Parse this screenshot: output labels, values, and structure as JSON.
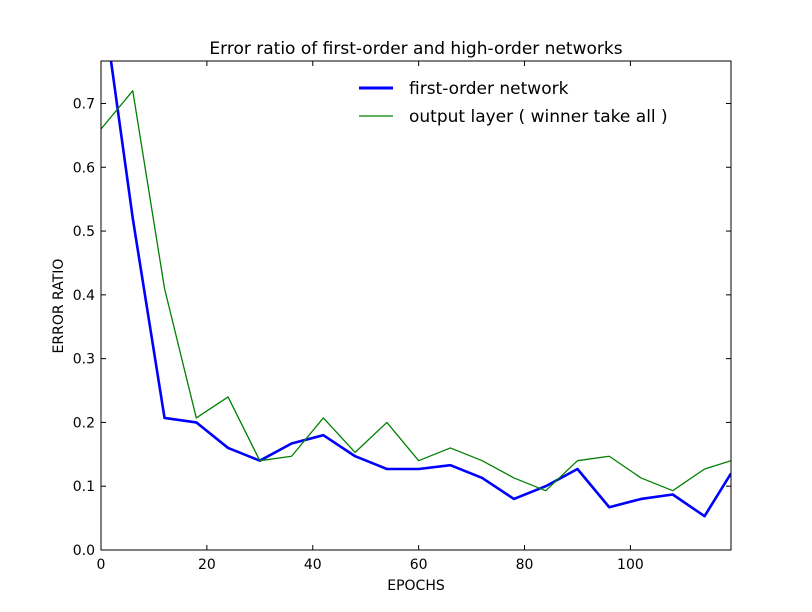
{
  "chart_data": {
    "type": "line",
    "title": "Error ratio of first-order and high-order networks",
    "xlabel": "EPOCHS",
    "ylabel": "ERROR RATIO",
    "xlim": [
      0,
      119
    ],
    "ylim": [
      0.0,
      0.7666
    ],
    "grid": false,
    "legend_position": "top-right",
    "x_ticks": [
      {
        "value": 0,
        "label": "0"
      },
      {
        "value": 20,
        "label": "20"
      },
      {
        "value": 40,
        "label": "40"
      },
      {
        "value": 60,
        "label": "60"
      },
      {
        "value": 80,
        "label": "80"
      },
      {
        "value": 100,
        "label": "100"
      }
    ],
    "y_ticks": [
      {
        "value": 0.0,
        "label": "0.0"
      },
      {
        "value": 0.1,
        "label": "0.1"
      },
      {
        "value": 0.2,
        "label": "0.2"
      },
      {
        "value": 0.3,
        "label": "0.3"
      },
      {
        "value": 0.4,
        "label": "0.4"
      },
      {
        "value": 0.5,
        "label": "0.5"
      },
      {
        "value": 0.6,
        "label": "0.6"
      },
      {
        "value": 0.7,
        "label": "0.7"
      }
    ],
    "series": [
      {
        "name": "first-order network",
        "color": "#0000ff",
        "style": "thick",
        "x": [
          0,
          6,
          12,
          18,
          24,
          30,
          36,
          42,
          48,
          54,
          60,
          66,
          72,
          78,
          84,
          90,
          96,
          102,
          108,
          114,
          119
        ],
        "y": [
          0.88,
          0.52,
          0.207,
          0.2,
          0.16,
          0.14,
          0.167,
          0.18,
          0.147,
          0.127,
          0.127,
          0.133,
          0.113,
          0.08,
          0.1,
          0.127,
          0.067,
          0.08,
          0.087,
          0.053,
          0.12
        ]
      },
      {
        "name": "output layer ( winner take all )",
        "color": "#008000",
        "style": "thin",
        "x": [
          0,
          6,
          12,
          18,
          24,
          30,
          36,
          42,
          48,
          54,
          60,
          66,
          72,
          78,
          84,
          90,
          96,
          102,
          108,
          114,
          119
        ],
        "y": [
          0.66,
          0.72,
          0.41,
          0.207,
          0.24,
          0.14,
          0.147,
          0.207,
          0.153,
          0.2,
          0.14,
          0.16,
          0.14,
          0.113,
          0.093,
          0.14,
          0.147,
          0.113,
          0.093,
          0.127,
          0.14
        ]
      }
    ]
  }
}
